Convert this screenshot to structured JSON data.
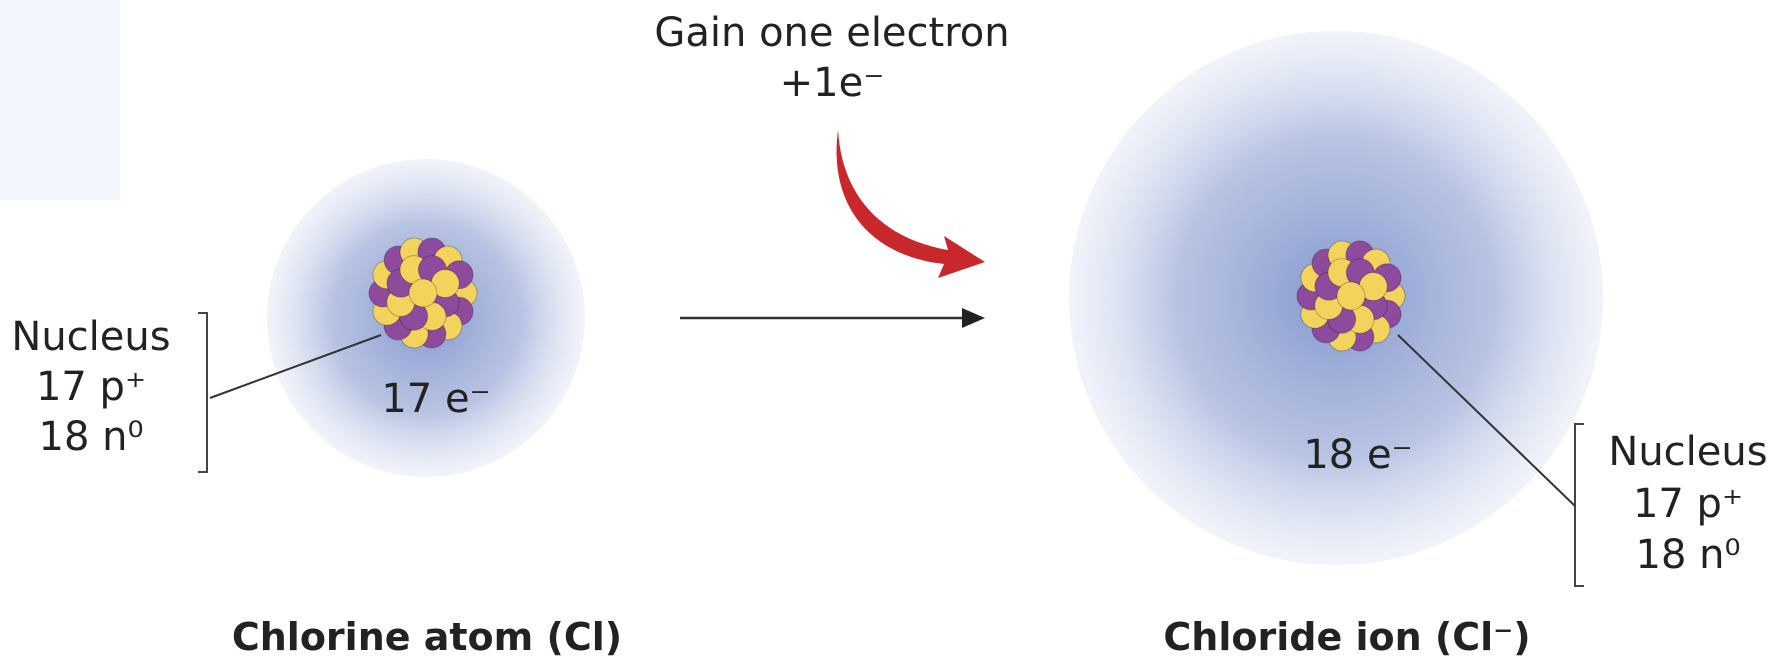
{
  "gain": {
    "label": "Gain one electron",
    "amount": "+1e⁻"
  },
  "atom": {
    "title": "Chlorine atom (Cl)",
    "electrons": "17 e⁻",
    "nucleus": {
      "label": "Nucleus",
      "protons": "17 p⁺",
      "neutrons": "18 n⁰"
    }
  },
  "ion": {
    "title": "Chloride ion (Cl⁻)",
    "electrons": "18 e⁻",
    "nucleus": {
      "label": "Nucleus",
      "protons": "17 p⁺",
      "neutrons": "18 n⁰"
    }
  }
}
